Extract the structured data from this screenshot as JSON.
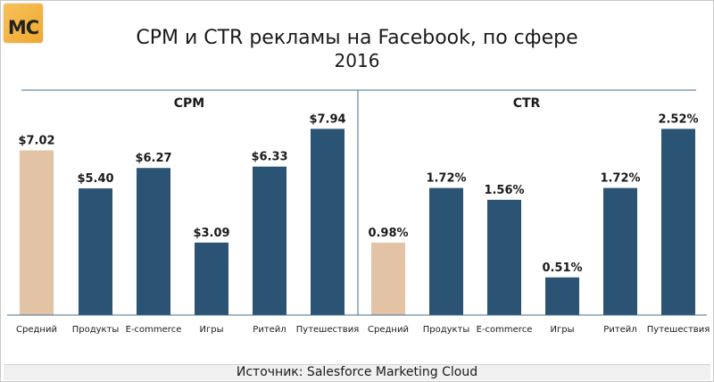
{
  "logo_text": "MC",
  "title": "CPM и CTR рекламы на Facebook, по сфере",
  "subtitle": "2016",
  "source": "Источник: Salesforce Marketing Cloud",
  "colors": {
    "highlight": "#e2c3a5",
    "bar": "#2b5374",
    "axis": "#4a6f8e",
    "divider": "#4a6f8e"
  },
  "chart_data": [
    {
      "type": "bar",
      "title": "CPM",
      "categories": [
        "Средний",
        "Продукты",
        "E-commerce",
        "Игры",
        "Ритейл",
        "Путешествия"
      ],
      "values": [
        7.02,
        5.4,
        6.27,
        3.09,
        6.33,
        7.94
      ],
      "value_labels": [
        "$7.02",
        "$5.40",
        "$6.27",
        "$3.09",
        "$6.33",
        "$7.94"
      ],
      "highlight_index": 0,
      "ylim": [
        0,
        8.6
      ]
    },
    {
      "type": "bar",
      "title": "CTR",
      "categories": [
        "Средний",
        "Продукты",
        "E-commerce",
        "Игры",
        "Ритейл",
        "Путешествия"
      ],
      "values": [
        0.98,
        1.72,
        1.56,
        0.51,
        1.72,
        2.52
      ],
      "value_labels": [
        "0.98%",
        "1.72%",
        "1.56%",
        "0.51%",
        "1.72%",
        "2.52%"
      ],
      "highlight_index": 0,
      "ylim": [
        0,
        2.73
      ]
    }
  ]
}
